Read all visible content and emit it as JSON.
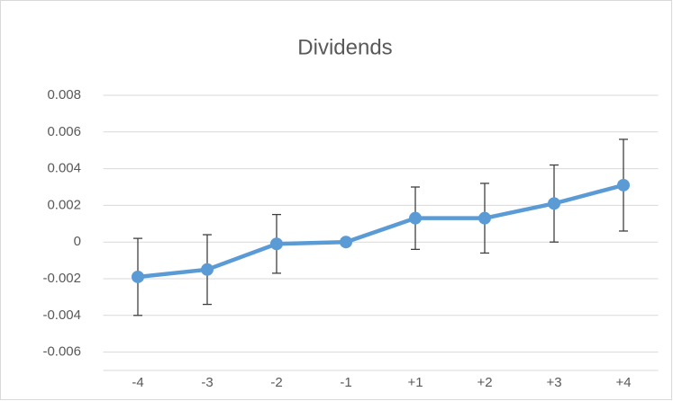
{
  "chart_data": {
    "type": "line",
    "title": "Dividends",
    "categories": [
      "-4",
      "-3",
      "-2",
      "-1",
      "+1",
      "+2",
      "+3",
      "+4"
    ],
    "series": [
      {
        "color": "#5b9bd5",
        "values": [
          -0.0019,
          -0.0015,
          -0.0001,
          0.0,
          0.0013,
          0.0013,
          0.0021,
          0.0031
        ],
        "errors": [
          0.0021,
          0.0019,
          0.0016,
          0.0,
          0.0017,
          0.0019,
          0.0021,
          0.0025
        ]
      }
    ],
    "ylim": [
      -0.007,
      0.008
    ],
    "yticks": [
      -0.006,
      -0.004,
      -0.002,
      0,
      0.002,
      0.004,
      0.006,
      0.008
    ],
    "grid": true
  }
}
